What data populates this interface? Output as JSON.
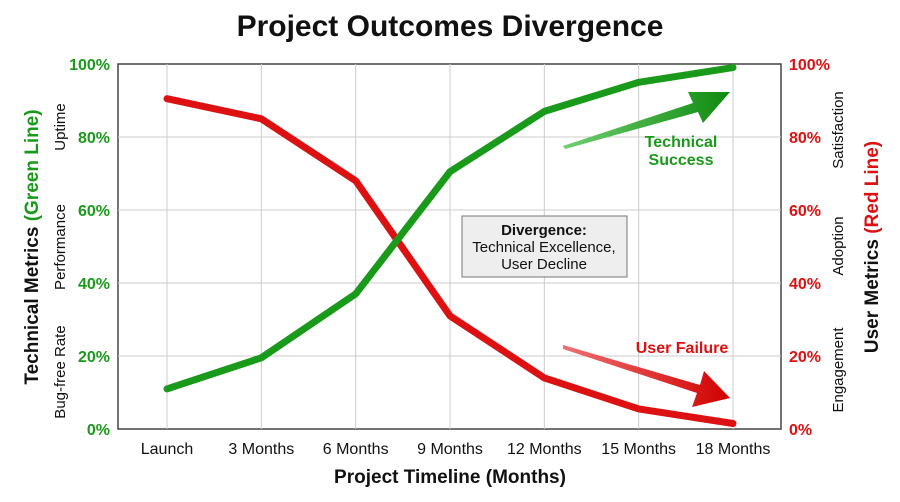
{
  "chart_data": {
    "type": "line",
    "title": "Project Outcomes Divergence",
    "xlabel": "Project Timeline (Months)",
    "categories": [
      "Launch",
      "3 Months",
      "6 Months",
      "9 Months",
      "12 Months",
      "15 Months",
      "18 Months"
    ],
    "ylim": [
      0,
      100
    ],
    "y_ticks": [
      "0%",
      "20%",
      "40%",
      "60%",
      "80%",
      "100%"
    ],
    "grid": true,
    "left_axis": {
      "title_black": "Technical Metrics ",
      "title_colored": "(Green Line)",
      "labels": [
        "Bug-free Rate",
        "Performance",
        "Uptime"
      ]
    },
    "right_axis": {
      "title_black": "User Metrics ",
      "title_colored": "(Red Line)",
      "labels": [
        "Engagement",
        "Adoption",
        "Satisfaction"
      ]
    },
    "series": [
      {
        "name": "Technical Metrics",
        "color": "#1a9a1a",
        "values": [
          11,
          19.5,
          37,
          70.5,
          87,
          95,
          99
        ]
      },
      {
        "name": "User Metrics",
        "color": "#dd1111",
        "values": [
          90.5,
          85,
          68,
          31,
          14,
          5.5,
          1.5
        ]
      }
    ],
    "annotations": {
      "technical_success": [
        "Technical",
        "Success"
      ],
      "user_failure": "User Failure",
      "divergence_box": {
        "title": "Divergence:",
        "lines": [
          "Technical Excellence,",
          "User Decline"
        ]
      }
    }
  }
}
